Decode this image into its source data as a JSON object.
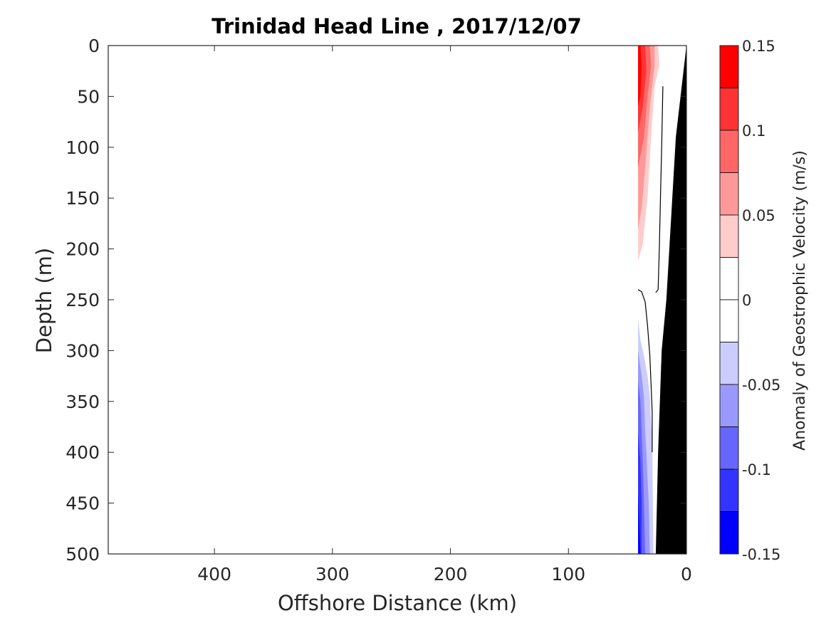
{
  "chart_data": {
    "type": "contourf",
    "title": "Trinidad Head Line , 2017/12/07",
    "xlabel": "Offshore Distance (km)",
    "ylabel": "Depth (m)",
    "x_reversed": true,
    "y_reversed": true,
    "xlim": [
      0,
      490
    ],
    "ylim": [
      0,
      500
    ],
    "x_ticks": [
      400,
      300,
      200,
      100,
      0
    ],
    "y_ticks": [
      0,
      50,
      100,
      150,
      200,
      250,
      300,
      350,
      400,
      450,
      500
    ],
    "colorbar": {
      "label": "Anomaly of Geostrophic Velocity (m/s)",
      "limits": [
        -0.15,
        0.15
      ],
      "ticks": [
        "0.15",
        "0.1",
        "0.05",
        "0",
        "-0.05",
        "-0.1",
        "-0.15"
      ],
      "levels": [
        {
          "range": [
            0.125,
            0.15
          ],
          "color": "#ff0000"
        },
        {
          "range": [
            0.1,
            0.125
          ],
          "color": "#ff3333"
        },
        {
          "range": [
            0.075,
            0.1
          ],
          "color": "#ff6666"
        },
        {
          "range": [
            0.05,
            0.075
          ],
          "color": "#ff9999"
        },
        {
          "range": [
            0.025,
            0.05
          ],
          "color": "#ffcccc"
        },
        {
          "range": [
            0.0,
            0.025
          ],
          "color": "#ffffff"
        },
        {
          "range": [
            -0.025,
            0.0
          ],
          "color": "#ffffff"
        },
        {
          "range": [
            -0.05,
            -0.025
          ],
          "color": "#ccccff"
        },
        {
          "range": [
            -0.075,
            -0.05
          ],
          "color": "#9999ff"
        },
        {
          "range": [
            -0.1,
            -0.075
          ],
          "color": "#6666ff"
        },
        {
          "range": [
            -0.125,
            -0.1
          ],
          "color": "#3333ff"
        },
        {
          "range": [
            -0.15,
            -0.125
          ],
          "color": "#0000ff"
        }
      ]
    },
    "regions": [
      {
        "name": "positive-0.025",
        "color": "#ffcccc",
        "points": [
          [
            41,
            0
          ],
          [
            24,
            0
          ],
          [
            23,
            20
          ],
          [
            27,
            40
          ],
          [
            30,
            90
          ],
          [
            33,
            150
          ],
          [
            37,
            195
          ],
          [
            41,
            212
          ]
        ]
      },
      {
        "name": "positive-0.05",
        "color": "#ff9999",
        "points": [
          [
            41,
            0
          ],
          [
            27,
            0
          ],
          [
            27,
            20
          ],
          [
            31,
            60
          ],
          [
            35,
            120
          ],
          [
            38,
            160
          ],
          [
            41,
            180
          ]
        ]
      },
      {
        "name": "positive-0.075",
        "color": "#ff6666",
        "points": [
          [
            41,
            0
          ],
          [
            31,
            0
          ],
          [
            30,
            20
          ],
          [
            33,
            50
          ],
          [
            36,
            90
          ],
          [
            41,
            120
          ]
        ]
      },
      {
        "name": "positive-0.1",
        "color": "#ff3333",
        "points": [
          [
            41,
            0
          ],
          [
            35,
            0
          ],
          [
            34,
            25
          ],
          [
            37,
            60
          ],
          [
            41,
            85
          ]
        ]
      },
      {
        "name": "positive-0.125",
        "color": "#ff0000",
        "points": [
          [
            41,
            0
          ],
          [
            39,
            0
          ],
          [
            38,
            20
          ],
          [
            39,
            50
          ],
          [
            41,
            60
          ]
        ]
      },
      {
        "name": "negative-0.025",
        "color": "#ccccff",
        "points": [
          [
            41,
            268
          ],
          [
            39,
            290
          ],
          [
            36,
            305
          ],
          [
            33,
            325
          ],
          [
            31,
            345
          ],
          [
            30,
            370
          ],
          [
            29,
            385
          ],
          [
            28,
            500
          ],
          [
            41,
            500
          ]
        ]
      },
      {
        "name": "negative-0.05",
        "color": "#9999ff",
        "points": [
          [
            41,
            300
          ],
          [
            38,
            325
          ],
          [
            36,
            345
          ],
          [
            35,
            380
          ],
          [
            34,
            400
          ],
          [
            32,
            450
          ],
          [
            31,
            500
          ],
          [
            41,
            500
          ]
        ]
      },
      {
        "name": "negative-0.075",
        "color": "#6666ff",
        "points": [
          [
            41,
            330
          ],
          [
            39,
            350
          ],
          [
            38,
            380
          ],
          [
            37,
            410
          ],
          [
            36,
            450
          ],
          [
            35,
            500
          ],
          [
            41,
            500
          ]
        ]
      },
      {
        "name": "negative-0.1",
        "color": "#3333ff",
        "points": [
          [
            41,
            380
          ],
          [
            39,
            410
          ],
          [
            38,
            450
          ],
          [
            38,
            500
          ],
          [
            41,
            500
          ]
        ]
      },
      {
        "name": "negative-0.125",
        "color": "#0000ff",
        "points": [
          [
            41,
            440
          ],
          [
            40,
            470
          ],
          [
            39,
            500
          ],
          [
            41,
            500
          ]
        ]
      }
    ],
    "zero_contours": [
      [
        [
          20,
          40
        ],
        [
          21,
          100
        ],
        [
          22,
          150
        ],
        [
          23,
          200
        ],
        [
          24,
          240
        ],
        [
          26,
          243
        ]
      ],
      [
        [
          41,
          240
        ],
        [
          38,
          242
        ],
        [
          35,
          252
        ],
        [
          33,
          275
        ],
        [
          31,
          305
        ],
        [
          29,
          360
        ],
        [
          29,
          400
        ]
      ]
    ],
    "bathymetry": {
      "color": "#000000",
      "points": [
        [
          0,
          0
        ],
        [
          9,
          90
        ],
        [
          17,
          250
        ],
        [
          21,
          300
        ],
        [
          24,
          400
        ],
        [
          26,
          500
        ],
        [
          0,
          500
        ]
      ]
    }
  }
}
